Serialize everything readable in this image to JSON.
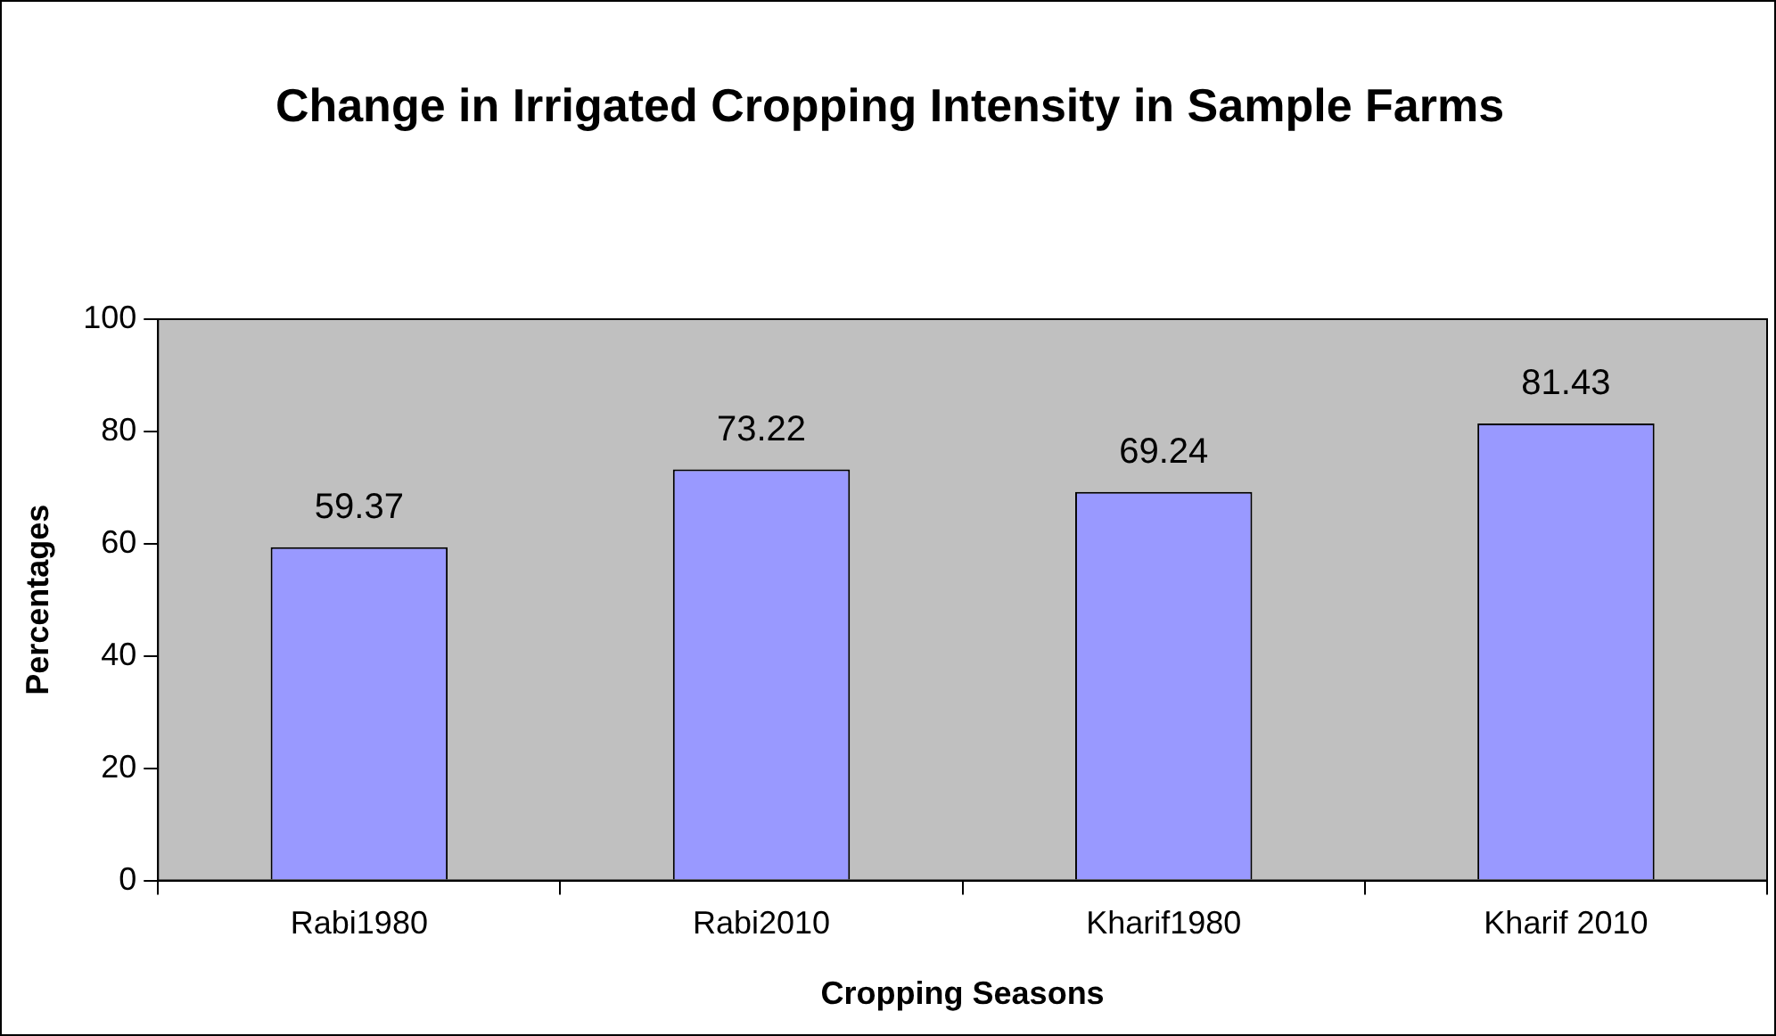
{
  "chart_data": {
    "type": "bar",
    "title": "Change in Irrigated Cropping Intensity in Sample Farms",
    "xlabel": "Cropping Seasons",
    "ylabel": "Percentages",
    "categories": [
      "Rabi1980",
      "Rabi2010",
      "Kharif1980",
      "Kharif 2010"
    ],
    "values": [
      59.37,
      73.22,
      69.24,
      81.43
    ],
    "color": "#9999ff",
    "ylim": [
      0,
      100
    ],
    "yticks": [
      0,
      20,
      40,
      60,
      80,
      100
    ],
    "data_labels": true
  }
}
